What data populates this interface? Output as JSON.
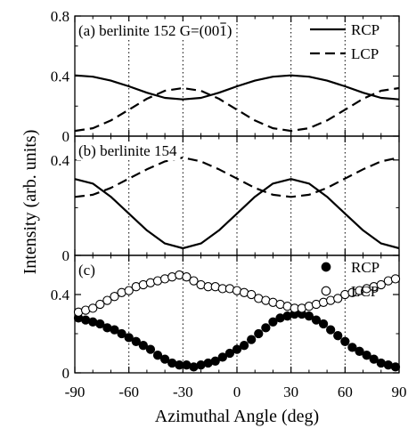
{
  "figure": {
    "ylabel": "Intensity (arb. units)",
    "xlabel": "Azimuthal Angle (deg)"
  },
  "chart_data": [
    {
      "type": "line",
      "panel_label": "(a) berlinite 152  G=(00̅1)",
      "panel_label_text": "(a) berlinite 152  G=(00",
      "panel_label_bar": "1",
      "panel_label_close": ")",
      "xlim": [
        -90,
        90
      ],
      "ylim": [
        0,
        0.8
      ],
      "yticks": [
        "0",
        "0.4",
        "0.8"
      ],
      "legend": "top-right",
      "series": [
        {
          "name": "RCP",
          "style": "solid",
          "x": [
            -90,
            -80,
            -70,
            -60,
            -50,
            -40,
            -30,
            -20,
            -10,
            0,
            10,
            20,
            30,
            40,
            50,
            60,
            70,
            80,
            90
          ],
          "y": [
            0.405,
            0.396,
            0.37,
            0.332,
            0.289,
            0.255,
            0.245,
            0.255,
            0.289,
            0.332,
            0.37,
            0.396,
            0.405,
            0.396,
            0.37,
            0.332,
            0.289,
            0.255,
            0.245
          ]
        },
        {
          "name": "LCP",
          "style": "dashed",
          "x": [
            -90,
            -80,
            -70,
            -60,
            -50,
            -40,
            -30,
            -20,
            -10,
            0,
            10,
            20,
            30,
            40,
            50,
            60,
            70,
            80,
            90
          ],
          "y": [
            0.035,
            0.053,
            0.104,
            0.176,
            0.249,
            0.302,
            0.32,
            0.302,
            0.249,
            0.176,
            0.104,
            0.053,
            0.035,
            0.053,
            0.104,
            0.176,
            0.249,
            0.302,
            0.32
          ]
        }
      ]
    },
    {
      "type": "line",
      "panel_label": "(b) berlinite 154",
      "xlim": [
        -90,
        90
      ],
      "ylim": [
        0,
        0.5
      ],
      "yticks": [
        "0",
        "0.4"
      ],
      "series": [
        {
          "name": "RCP",
          "style": "solid",
          "x": [
            -90,
            -80,
            -70,
            -60,
            -50,
            -40,
            -30,
            -20,
            -10,
            0,
            10,
            20,
            30,
            40,
            50,
            60,
            70,
            80,
            90
          ],
          "y": [
            0.32,
            0.301,
            0.246,
            0.175,
            0.105,
            0.05,
            0.03,
            0.05,
            0.105,
            0.175,
            0.246,
            0.301,
            0.32,
            0.301,
            0.246,
            0.175,
            0.105,
            0.05,
            0.03
          ]
        },
        {
          "name": "LCP",
          "style": "dashed",
          "x": [
            -90,
            -80,
            -70,
            -60,
            -50,
            -40,
            -30,
            -20,
            -10,
            0,
            10,
            20,
            30,
            40,
            50,
            60,
            70,
            80,
            90
          ],
          "y": [
            0.245,
            0.254,
            0.283,
            0.322,
            0.361,
            0.394,
            0.41,
            0.394,
            0.361,
            0.322,
            0.283,
            0.254,
            0.245,
            0.254,
            0.283,
            0.322,
            0.361,
            0.394,
            0.41
          ]
        }
      ]
    },
    {
      "type": "scatter",
      "panel_label": "(c)",
      "xlim": [
        -90,
        90
      ],
      "ylim": [
        0,
        0.6
      ],
      "yticks": [
        "0",
        "0.4"
      ],
      "legend": "top-right",
      "series": [
        {
          "name": "RCP",
          "marker": "filled-circle",
          "x": [
            -88,
            -84,
            -80,
            -76,
            -72,
            -68,
            -64,
            -60,
            -56,
            -52,
            -48,
            -44,
            -40,
            -36,
            -32,
            -28,
            -24,
            -20,
            -16,
            -12,
            -8,
            -4,
            0,
            4,
            8,
            12,
            16,
            20,
            24,
            28,
            32,
            36,
            40,
            44,
            48,
            52,
            56,
            60,
            64,
            68,
            72,
            76,
            80,
            84,
            88
          ],
          "y": [
            0.28,
            0.27,
            0.26,
            0.25,
            0.23,
            0.22,
            0.2,
            0.18,
            0.16,
            0.14,
            0.12,
            0.09,
            0.07,
            0.05,
            0.04,
            0.04,
            0.03,
            0.04,
            0.05,
            0.06,
            0.08,
            0.1,
            0.12,
            0.14,
            0.17,
            0.2,
            0.23,
            0.26,
            0.28,
            0.29,
            0.3,
            0.3,
            0.29,
            0.27,
            0.25,
            0.22,
            0.19,
            0.16,
            0.13,
            0.11,
            0.09,
            0.07,
            0.05,
            0.04,
            0.03
          ]
        },
        {
          "name": "LCP",
          "marker": "open-circle",
          "x": [
            -88,
            -84,
            -80,
            -76,
            -72,
            -68,
            -64,
            -60,
            -56,
            -52,
            -48,
            -44,
            -40,
            -36,
            -32,
            -28,
            -24,
            -20,
            -16,
            -12,
            -8,
            -4,
            0,
            4,
            8,
            12,
            16,
            20,
            24,
            28,
            32,
            36,
            40,
            44,
            48,
            52,
            56,
            60,
            64,
            68,
            72,
            76,
            80,
            84,
            88
          ],
          "y": [
            0.31,
            0.32,
            0.33,
            0.35,
            0.37,
            0.39,
            0.41,
            0.42,
            0.44,
            0.45,
            0.46,
            0.47,
            0.48,
            0.49,
            0.5,
            0.49,
            0.47,
            0.45,
            0.44,
            0.44,
            0.43,
            0.43,
            0.42,
            0.41,
            0.4,
            0.38,
            0.37,
            0.36,
            0.35,
            0.34,
            0.33,
            0.33,
            0.34,
            0.35,
            0.36,
            0.37,
            0.38,
            0.4,
            0.41,
            0.42,
            0.43,
            0.44,
            0.45,
            0.47,
            0.48
          ]
        }
      ]
    }
  ],
  "xticks": [
    "-90",
    "-60",
    "-30",
    "0",
    "30",
    "60",
    "90"
  ],
  "xtick_values": [
    -90,
    -60,
    -30,
    0,
    30,
    60,
    90
  ]
}
